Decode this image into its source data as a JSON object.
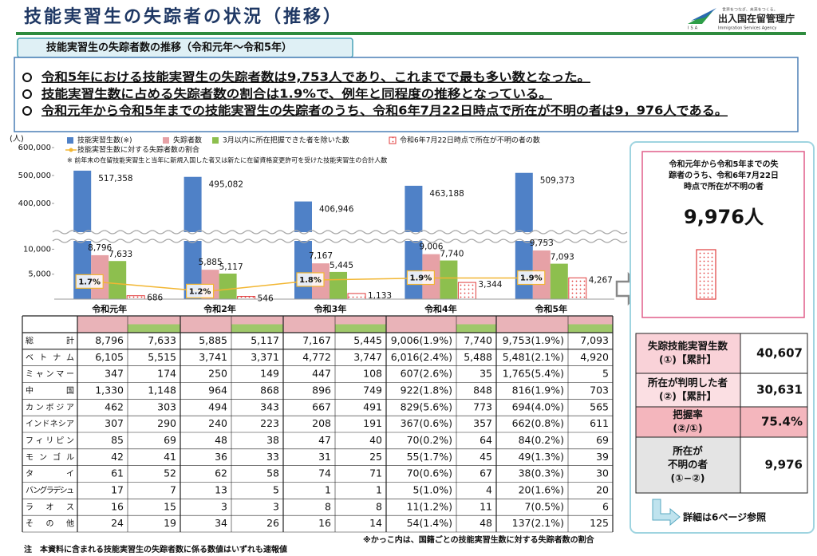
{
  "header": {
    "title": "技能実習生の失踪者の状況（推移）",
    "logo": {
      "tagline": "世界をつなぎ、未来をつくる。",
      "abbr": "ISA",
      "name": "出入国在留管理庁",
      "english": "Immigration Services Agency"
    }
  },
  "section_title": "技能実習生の失踪者数の推移（令和元年～令和5年）",
  "summary": [
    "令和5年における技能実習生の失踪者数は9,753人であり、これまでで最も多い数となった。",
    "技能実習生数に占める失踪者数の割合は1.9%で、例年と同程度の推移となっている。",
    "令和元年から令和5年までの技能実習生の失踪者のうち、令和6年7月22日時点で所在が不明の者は9，976人である。"
  ],
  "chart_data": {
    "type": "bar",
    "y_unit": "(人)",
    "categories": [
      "令和元年",
      "令和2年",
      "令和3年",
      "令和4年",
      "令和5年"
    ],
    "series": [
      {
        "name": "技能実習生数(※)",
        "color": "#4f81c7",
        "values": [
          517358,
          495082,
          406946,
          463188,
          509373
        ],
        "value_labels": [
          "517,358",
          "495,082",
          "406,946",
          "463,188",
          "509,373"
        ]
      },
      {
        "name": "失踪者数",
        "color": "#e6a1a6",
        "values": [
          8796,
          5885,
          7167,
          9006,
          9753
        ],
        "value_labels": [
          "8,796",
          "5,885",
          "7,167",
          "9,006",
          "9,753"
        ]
      },
      {
        "name": "3月以内に所在把握できた者を除いた数",
        "color": "#8dbf4e",
        "values": [
          7633,
          5117,
          5445,
          7740,
          7093
        ],
        "value_labels": [
          "7,633",
          "5,117",
          "5,445",
          "7,740",
          "7,093"
        ]
      },
      {
        "name": "令和6年7月22日時点で所在が不明の者の数",
        "color": "#e03c3c",
        "pattern": "dots",
        "values": [
          686,
          546,
          1133,
          3344,
          4267
        ],
        "value_labels": [
          "686",
          "546",
          "1,133",
          "3,344",
          "4,267"
        ]
      },
      {
        "name": "技能実習生数に対する失踪者数の割合",
        "type": "line",
        "axis": "y2",
        "color": "#f2b632",
        "values": [
          1.7,
          1.2,
          1.8,
          1.9,
          1.9
        ],
        "value_labels": [
          "1.7%",
          "1.2%",
          "1.8%",
          "1.9%",
          "1.9%"
        ]
      }
    ],
    "note": "※ 前年末の在留技能実習生と当年に新規入国した者又は新たに在留資格変更許可を受けた技能実習生の合計人数",
    "ylim": [
      0,
      600000
    ],
    "axis_break": [
      11500,
      300000
    ],
    "yticks": [
      {
        "value": 5000,
        "label": "5,000"
      },
      {
        "value": 10000,
        "label": "10,000"
      },
      {
        "value": 400000,
        "label": "400,000"
      },
      {
        "value": 500000,
        "label": "500,000"
      },
      {
        "value": 600000,
        "label": "600,000"
      }
    ],
    "y2lim": [
      0.8,
      8.7
    ]
  },
  "table": {
    "rows": [
      {
        "label": "総計",
        "cells": [
          "8,796",
          "7,633",
          "5,885",
          "5,117",
          "7,167",
          "5,445",
          "9,006(1.9%)",
          "7,740",
          "9,753(1.9%)",
          "7,093"
        ]
      },
      {
        "label": "ベトナム",
        "cells": [
          "6,105",
          "5,515",
          "3,741",
          "3,371",
          "4,772",
          "3,747",
          "6,016(2.4%)",
          "5,488",
          "5,481(2.1%)",
          "4,920"
        ]
      },
      {
        "label": "ミャンマー",
        "cells": [
          "347",
          "174",
          "250",
          "149",
          "447",
          "108",
          "607(2.6%)",
          "35",
          "1,765(5.4%)",
          "5"
        ]
      },
      {
        "label": "中国",
        "cells": [
          "1,330",
          "1,148",
          "964",
          "868",
          "896",
          "749",
          "922(1.8%)",
          "848",
          "816(1.9%)",
          "703"
        ]
      },
      {
        "label": "カンボジア",
        "cells": [
          "462",
          "303",
          "494",
          "343",
          "667",
          "491",
          "829(5.6%)",
          "773",
          "694(4.0%)",
          "565"
        ]
      },
      {
        "label": "インドネシア",
        "cells": [
          "307",
          "290",
          "240",
          "223",
          "208",
          "191",
          "367(0.6%)",
          "357",
          "662(0.8%)",
          "611"
        ]
      },
      {
        "label": "フィリピン",
        "cells": [
          "85",
          "69",
          "48",
          "38",
          "47",
          "40",
          "70(0.2%)",
          "64",
          "84(0.2%)",
          "69"
        ]
      },
      {
        "label": "モンゴル",
        "cells": [
          "42",
          "41",
          "36",
          "33",
          "31",
          "25",
          "55(1.7%)",
          "45",
          "49(1.3%)",
          "39"
        ]
      },
      {
        "label": "タイ",
        "cells": [
          "61",
          "52",
          "62",
          "58",
          "74",
          "71",
          "70(0.6%)",
          "67",
          "38(0.3%)",
          "30"
        ]
      },
      {
        "label": "バングラデシュ",
        "cells": [
          "17",
          "7",
          "13",
          "5",
          "1",
          "1",
          "5(1.0%)",
          "4",
          "20(1.6%)",
          "20"
        ]
      },
      {
        "label": "ラオス",
        "cells": [
          "16",
          "15",
          "3",
          "3",
          "8",
          "8",
          "11(1.2%)",
          "11",
          "7(0.5%)",
          "6"
        ]
      },
      {
        "label": "その他",
        "cells": [
          "24",
          "19",
          "34",
          "26",
          "16",
          "14",
          "54(1.4%)",
          "48",
          "137(2.1%)",
          "125"
        ]
      }
    ]
  },
  "sidebar": {
    "box_lines": [
      "令和元年から令和5年までの失",
      "踪者のうち、令和6年7月22日",
      "時点で所在が不明の者"
    ],
    "box_total": "9,976人",
    "rows": [
      {
        "label": [
          "失踪技能実習生数",
          "(①)【累計】"
        ],
        "value": "40,607"
      },
      {
        "label": [
          "所在が判明した者",
          "(②)【累計】"
        ],
        "value": "30,631"
      },
      {
        "label": [
          "把握率",
          "(②/①)"
        ],
        "value": "75.4%"
      },
      {
        "label": [
          "所在が",
          "不明の者",
          "(①−②)"
        ],
        "value": "9,976"
      }
    ],
    "reference": "詳細は6ページ参照"
  },
  "footnotes": {
    "note": "注　本資料に含まれる技能実習生の失踪者数に係る数値はいずれも速報値",
    "paren": "※かっこ内は、国籍ごとの技能実習生数に対する失踪者数の割合"
  }
}
